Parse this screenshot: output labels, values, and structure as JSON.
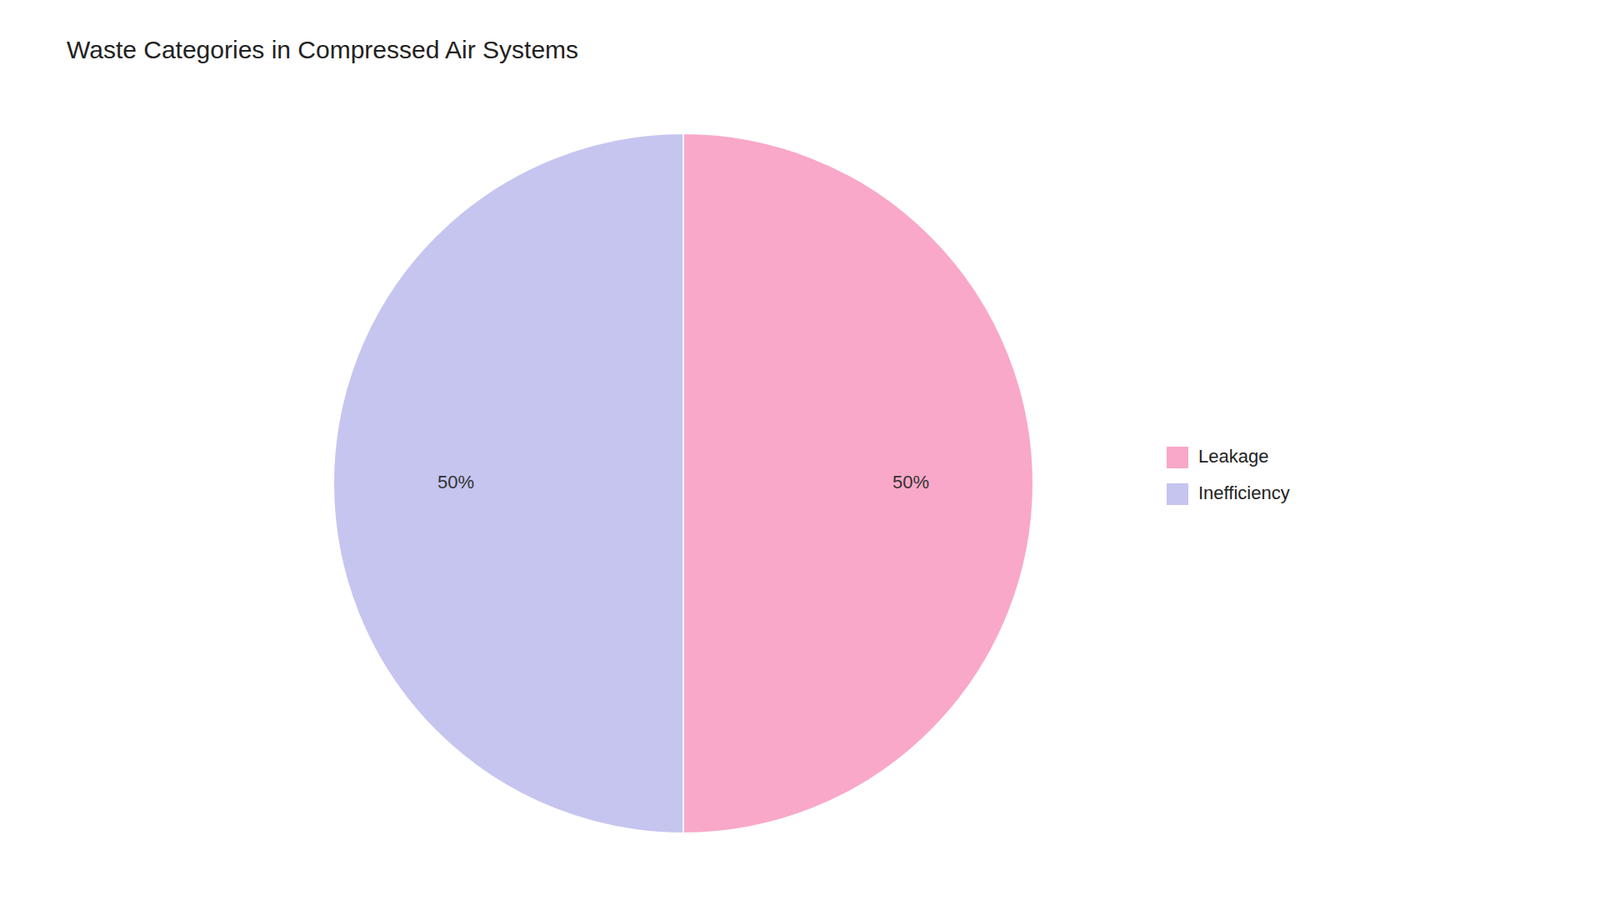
{
  "chart_data": {
    "type": "pie",
    "title": "Waste Categories in Compressed Air Systems",
    "categories": [
      "Leakage",
      "Inefficiency"
    ],
    "values": [
      50,
      50
    ],
    "value_labels": [
      "50%",
      "50%"
    ],
    "colors": [
      "#F9A8C9",
      "#C5C5F0"
    ],
    "data_labels": true,
    "legend": "right"
  }
}
